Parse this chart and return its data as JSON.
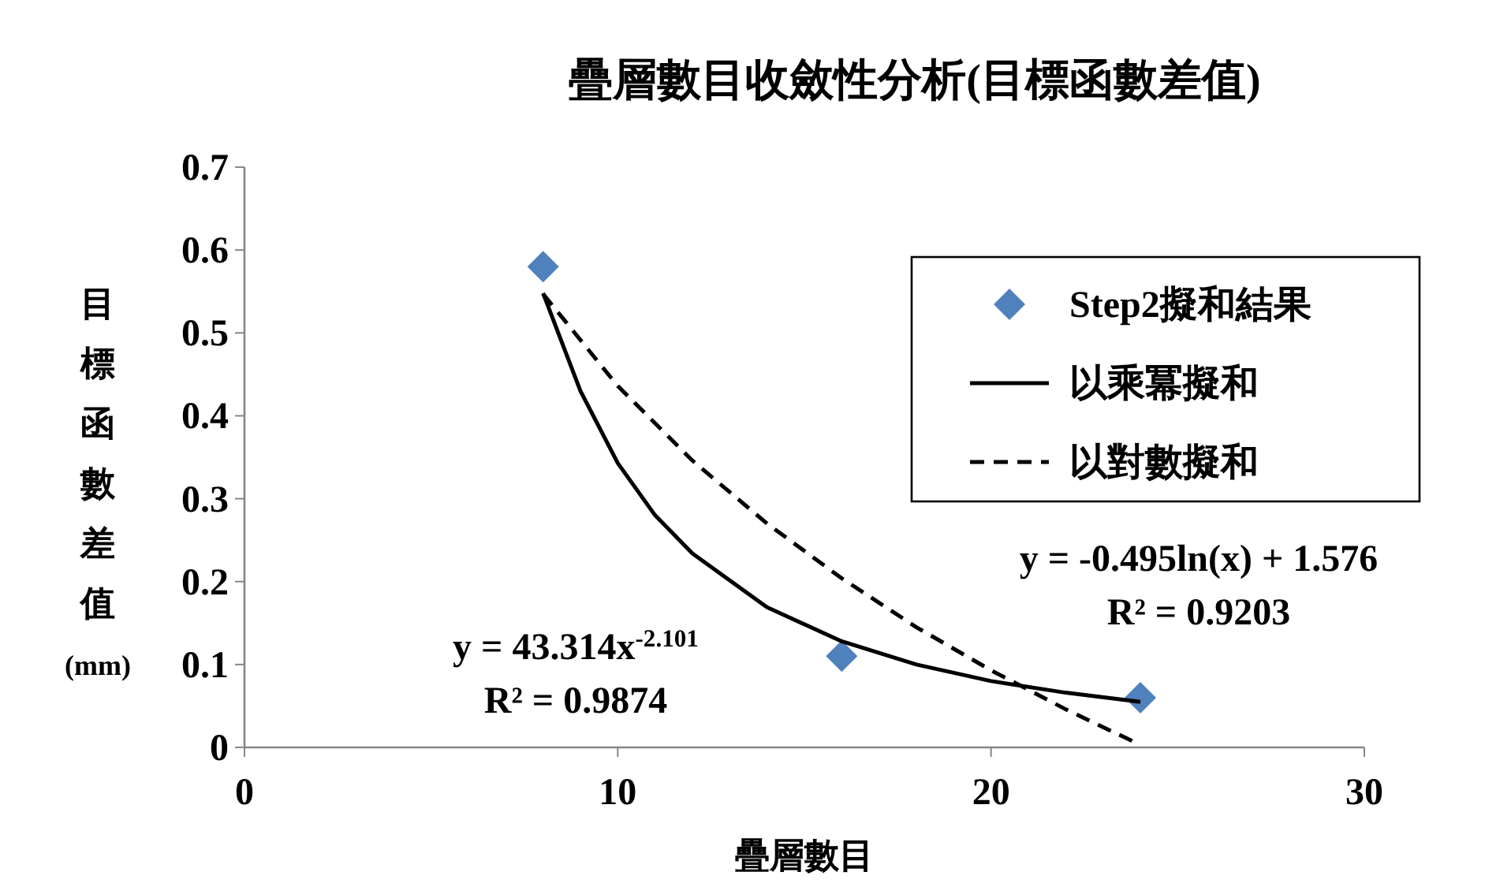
{
  "chart_data": {
    "type": "scatter",
    "title": "疊層數目收斂性分析(目標函數差值)",
    "xlabel": "疊層數目",
    "ylabel": "目標函數差值(mm)",
    "xlim": [
      0,
      30
    ],
    "xticks": [
      0,
      10,
      20,
      30
    ],
    "ylim": [
      0,
      0.7
    ],
    "yticks": [
      0,
      0.1,
      0.2,
      0.3,
      0.4,
      0.5,
      0.6,
      0.7
    ],
    "grid": false,
    "legend": "top right",
    "series": [
      {
        "name": "Step2擬和結果",
        "marker": "diamond",
        "color": "#4f81bd",
        "x": [
          8,
          16,
          24
        ],
        "values": [
          0.58,
          0.11,
          0.06
        ]
      },
      {
        "name": "以乘冪擬和",
        "type": "line",
        "marker": "none",
        "line_style": "solid",
        "color": "#000000",
        "x": [
          8,
          9,
          10,
          11,
          12,
          14,
          16,
          18,
          20,
          22,
          24
        ],
        "values": [
          0.548,
          0.43,
          0.343,
          0.28,
          0.234,
          0.169,
          0.128,
          0.1,
          0.08,
          0.066,
          0.055
        ]
      },
      {
        "name": "以對數擬和",
        "type": "line",
        "marker": "none",
        "line_style": "dashed",
        "color": "#000000",
        "x": [
          8,
          10,
          12,
          14,
          16,
          18,
          20,
          22,
          24
        ],
        "values": [
          0.547,
          0.436,
          0.346,
          0.27,
          0.204,
          0.145,
          0.093,
          0.046,
          0.003
        ]
      }
    ],
    "annotations": [
      "y = 43.314x$^{-2.101}$",
      "R² = 0.9874",
      "y = -0.495ln(x) + 1.576",
      "R² = 0.9203"
    ]
  }
}
